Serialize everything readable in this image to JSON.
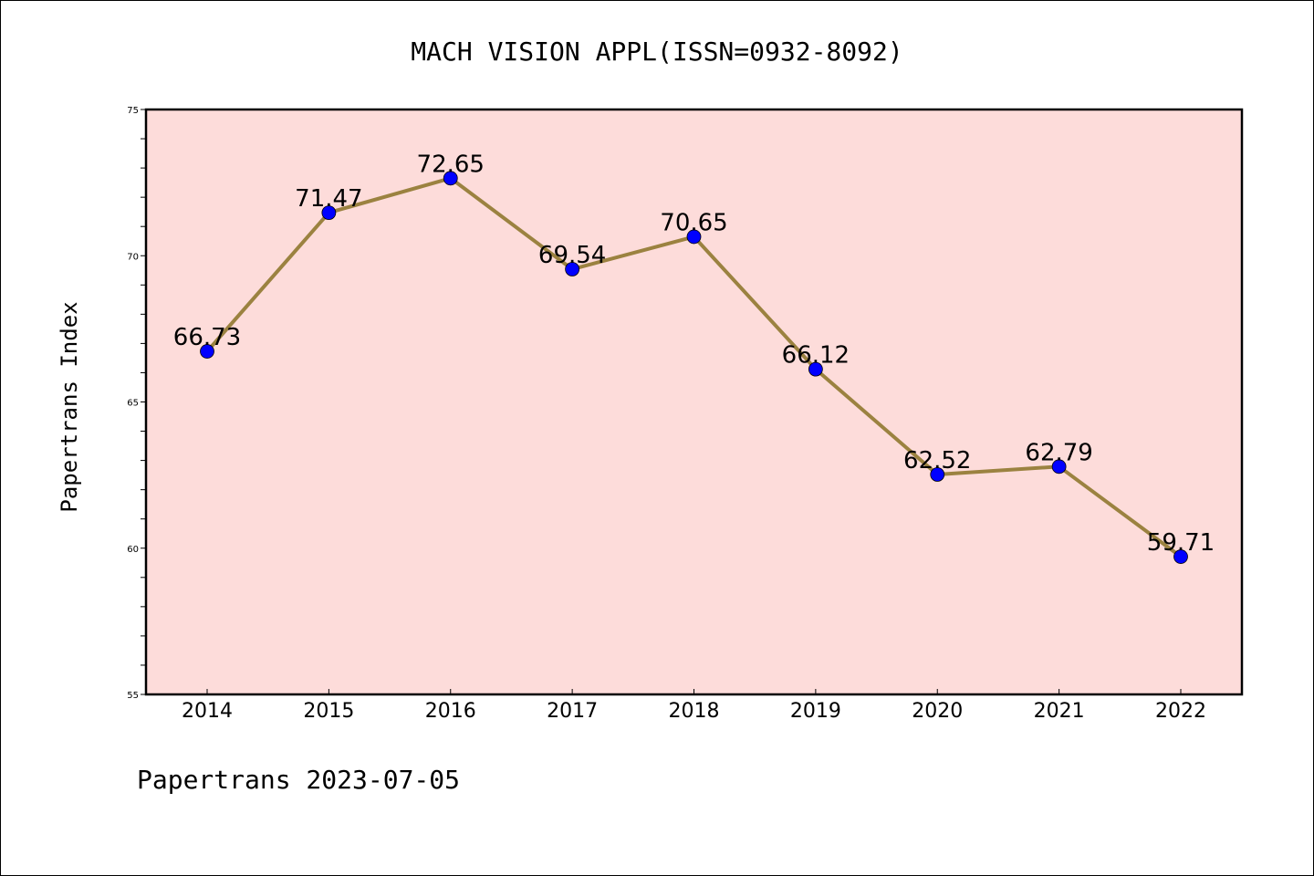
{
  "chart_data": {
    "type": "line",
    "title": "MACH VISION APPL(ISSN=0932-8092)",
    "xlabel": "",
    "ylabel": "Papertrans Index",
    "categories": [
      "2014",
      "2015",
      "2016",
      "2017",
      "2018",
      "2019",
      "2020",
      "2021",
      "2022"
    ],
    "series": [
      {
        "values": [
          66.73,
          71.47,
          72.65,
          69.54,
          70.65,
          66.12,
          62.52,
          62.79,
          59.71
        ],
        "data_labels": [
          "66.73",
          "71.47",
          "72.65",
          "69.54",
          "70.65",
          "66.12",
          "62.52",
          "62.79",
          "59.71"
        ]
      }
    ],
    "ylim": [
      55,
      75
    ],
    "yticks": [
      "55",
      "60",
      "65",
      "70",
      "75"
    ],
    "grid": false,
    "legend": "none"
  },
  "footer": {
    "text": "Papertrans 2023-07-05"
  },
  "colors": {
    "plot_background": "#FDDCDA",
    "line": "#9B8240",
    "marker": "#0000FF",
    "axis": "#000000"
  }
}
